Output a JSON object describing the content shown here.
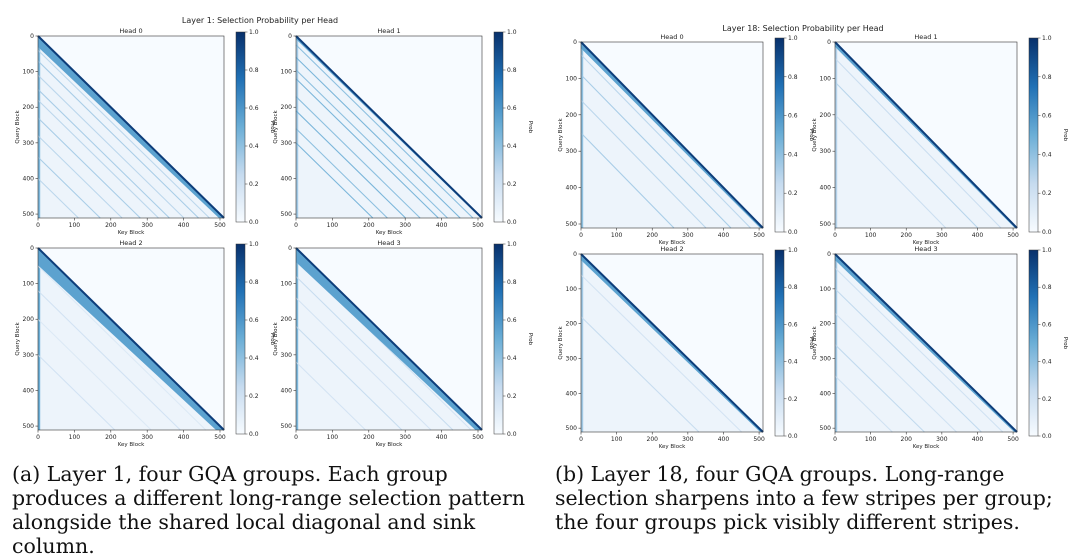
{
  "panels": [
    {
      "title": "Layer 1: Selection Probability per Head",
      "caption": "(a) Layer 1, four GQA groups. Each group produces a different long-range selection pattern alongside the shared local diagonal and sink column."
    },
    {
      "title": "Layer 18: Selection Probability per Head",
      "caption": "(b) Layer 18, four GQA groups. Long-range selection sharpens into a few stripes per group; the four groups pick visibly different stripes."
    }
  ],
  "chart_data": [
    {
      "type": "heatmap",
      "title": "Layer 1: Selection Probability per Head",
      "xlabel": "Key Block",
      "ylabel": "Query Block",
      "xlim": [
        0,
        511
      ],
      "ylim": [
        511,
        0
      ],
      "x_ticks": [
        0,
        100,
        200,
        300,
        400,
        500
      ],
      "y_ticks": [
        0,
        100,
        200,
        300,
        400,
        500
      ],
      "colorbar": {
        "label": "Prob",
        "range": [
          0.0,
          1.0
        ],
        "ticks": [
          "0.0",
          "0.2",
          "0.4",
          "0.6",
          "0.8",
          "1.0"
        ],
        "colormap": "Blues"
      },
      "subplots": [
        {
          "title": "Head 0",
          "stripe_offsets": [
            40,
            70,
            110,
            150,
            180,
            230,
            280,
            340,
            400
          ],
          "stripe_strength": 0.3,
          "diag_width": 14,
          "sink_strength": 0.45
        },
        {
          "title": "Head 1",
          "stripe_offsets": [
            25,
            60,
            95,
            120,
            170,
            210,
            260,
            300
          ],
          "stripe_strength": 0.45,
          "diag_width": 4,
          "sink_strength": 0.35
        },
        {
          "title": "Head 2",
          "stripe_offsets": [
            50,
            120,
            200,
            300
          ],
          "stripe_strength": 0.15,
          "diag_width": 22,
          "sink_strength": 0.5
        },
        {
          "title": "Head 3",
          "stripe_offsets": [
            30,
            80,
            140,
            220,
            320
          ],
          "stripe_strength": 0.2,
          "diag_width": 18,
          "sink_strength": 0.45
        }
      ]
    },
    {
      "type": "heatmap",
      "title": "Layer 18: Selection Probability per Head",
      "xlabel": "Key Block",
      "ylabel": "Query Block",
      "xlim": [
        0,
        511
      ],
      "ylim": [
        511,
        0
      ],
      "x_ticks": [
        0,
        100,
        200,
        300,
        400,
        500
      ],
      "y_ticks": [
        0,
        100,
        200,
        300,
        400,
        500
      ],
      "colorbar": {
        "label": "Prob",
        "range": [
          0.0,
          1.0
        ],
        "ticks": [
          "0.0",
          "0.2",
          "0.4",
          "0.6",
          "0.8",
          "1.0"
        ],
        "colormap": "Blues"
      },
      "subplots": [
        {
          "title": "Head 0",
          "stripe_offsets": [
            35,
            90,
            160,
            250
          ],
          "stripe_strength": 0.3,
          "diag_width": 8,
          "sink_strength": 0.4
        },
        {
          "title": "Head 1",
          "stripe_offsets": [
            45,
            110,
            200
          ],
          "stripe_strength": 0.25,
          "diag_width": 6,
          "sink_strength": 0.3
        },
        {
          "title": "Head 2",
          "stripe_offsets": [
            60,
            180
          ],
          "stripe_strength": 0.2,
          "diag_width": 8,
          "sink_strength": 0.35
        },
        {
          "title": "Head 3",
          "stripe_offsets": [
            40,
            100,
            170,
            260,
            350
          ],
          "stripe_strength": 0.22,
          "diag_width": 8,
          "sink_strength": 0.35
        }
      ]
    }
  ]
}
